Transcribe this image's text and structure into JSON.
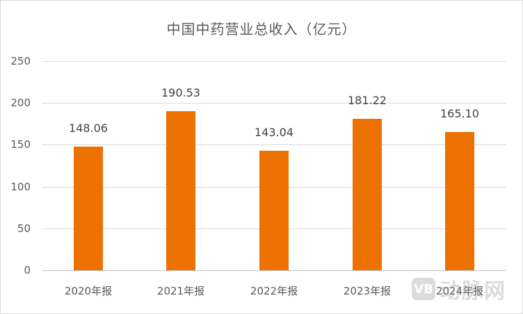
{
  "chart_data": {
    "type": "bar",
    "title": "中国中药营业总收入（亿元）",
    "categories": [
      "2020年报",
      "2021年报",
      "2022年报",
      "2023年报",
      "2024年报"
    ],
    "values": [
      148.06,
      190.53,
      143.04,
      181.22,
      165.1
    ],
    "value_labels": [
      "148.06",
      "190.53",
      "143.04",
      "181.22",
      "165.10"
    ],
    "xlabel": "",
    "ylabel": "",
    "ylim": [
      0,
      250
    ],
    "yticks": [
      "0",
      "50",
      "100",
      "150",
      "200",
      "250"
    ],
    "grid": true,
    "legend": "none",
    "bar_color": "#ED7100"
  },
  "watermark": {
    "logo": "VB",
    "text": "动脉网"
  }
}
